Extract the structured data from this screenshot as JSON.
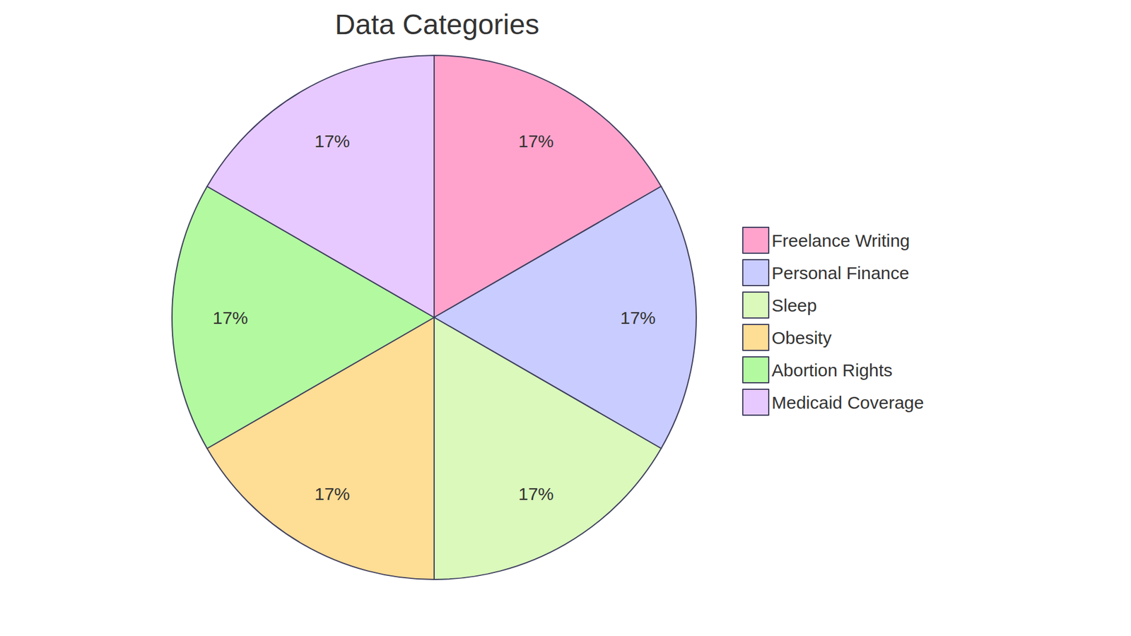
{
  "chart_data": {
    "type": "pie",
    "title": "Data Categories",
    "categories": [
      "Freelance Writing",
      "Personal Finance",
      "Sleep",
      "Obesity",
      "Abortion Rights",
      "Medicaid Coverage"
    ],
    "values": [
      17,
      17,
      17,
      17,
      17,
      17
    ],
    "value_labels": [
      "17%",
      "17%",
      "17%",
      "17%",
      "17%",
      "17%"
    ],
    "colors": [
      "#ffa3cc",
      "#c9ccff",
      "#daf9bb",
      "#fedd94",
      "#b3f9a0",
      "#e7c9ff"
    ],
    "data_labels": true,
    "legend": "right"
  }
}
